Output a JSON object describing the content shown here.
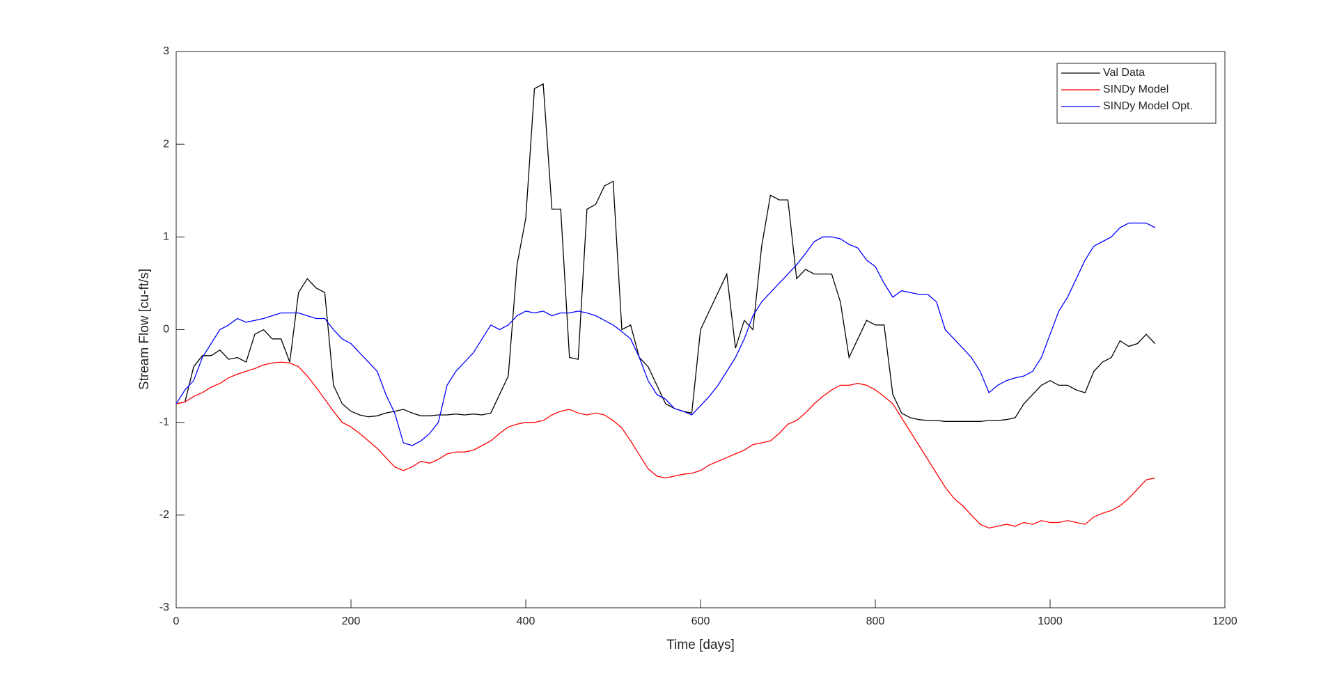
{
  "chart_data": {
    "type": "line",
    "xlabel": "Time [days]",
    "ylabel": "Stream Flow [cu-ft/s]",
    "xlim": [
      0,
      1200
    ],
    "ylim": [
      -3,
      3
    ],
    "xticks": [
      0,
      200,
      400,
      600,
      800,
      1000,
      1200
    ],
    "yticks": [
      -3,
      -2,
      -1,
      0,
      1,
      2,
      3
    ],
    "legend": "upper right",
    "x": [
      0,
      10,
      20,
      30,
      40,
      50,
      60,
      70,
      80,
      90,
      100,
      110,
      120,
      130,
      140,
      150,
      160,
      170,
      180,
      190,
      200,
      210,
      220,
      230,
      240,
      250,
      260,
      270,
      280,
      290,
      300,
      310,
      320,
      330,
      340,
      350,
      360,
      370,
      380,
      390,
      400,
      410,
      420,
      430,
      440,
      450,
      460,
      470,
      480,
      490,
      500,
      510,
      520,
      530,
      540,
      550,
      560,
      570,
      580,
      590,
      600,
      610,
      620,
      630,
      640,
      650,
      660,
      670,
      680,
      690,
      700,
      710,
      720,
      730,
      740,
      750,
      760,
      770,
      780,
      790,
      800,
      810,
      820,
      830,
      840,
      850,
      860,
      870,
      880,
      890,
      900,
      910,
      920,
      930,
      940,
      950,
      960,
      970,
      980,
      990,
      1000,
      1010,
      1020,
      1030,
      1040,
      1050,
      1060,
      1070,
      1080,
      1090,
      1100,
      1110,
      1120
    ],
    "series": [
      {
        "name": "Val Data",
        "color": "#000000",
        "values": [
          -0.8,
          -0.78,
          -0.4,
          -0.28,
          -0.28,
          -0.22,
          -0.32,
          -0.3,
          -0.35,
          -0.05,
          0,
          -0.1,
          -0.1,
          -0.35,
          0.4,
          0.55,
          0.45,
          0.4,
          -0.6,
          -0.8,
          -0.88,
          -0.92,
          -0.94,
          -0.93,
          -0.9,
          -0.88,
          -0.86,
          -0.9,
          -0.93,
          -0.93,
          -0.92,
          -0.92,
          -0.91,
          -0.92,
          -0.91,
          -0.92,
          -0.9,
          -0.7,
          -0.5,
          0.7,
          1.2,
          2.6,
          2.65,
          1.3,
          1.3,
          -0.3,
          -0.32,
          1.3,
          1.35,
          1.55,
          1.6,
          0,
          0.05,
          -0.3,
          -0.4,
          -0.6,
          -0.8,
          -0.85,
          -0.88,
          -0.9,
          0,
          0.2,
          0.4,
          0.6,
          -0.2,
          0.1,
          0,
          0.9,
          1.45,
          1.4,
          1.4,
          0.55,
          0.65,
          0.6,
          0.6,
          0.6,
          0.3,
          -0.3,
          -0.1,
          0.1,
          0.05,
          0.05,
          -0.7,
          -0.9,
          -0.95,
          -0.97,
          -0.98,
          -0.98,
          -0.99,
          -0.99,
          -0.99,
          -0.99,
          -0.99,
          -0.98,
          -0.98,
          -0.97,
          -0.95,
          -0.8,
          -0.7,
          -0.6,
          -0.55,
          -0.6,
          -0.6,
          -0.65,
          -0.68,
          -0.45,
          -0.35,
          -0.3,
          -0.12,
          -0.18,
          -0.15,
          -0.05,
          -0.15
        ]
      },
      {
        "name": "SINDy Model",
        "color": "#ff0000",
        "values": [
          -0.8,
          -0.78,
          -0.72,
          -0.68,
          -0.62,
          -0.58,
          -0.52,
          -0.48,
          -0.45,
          -0.42,
          -0.38,
          -0.36,
          -0.35,
          -0.36,
          -0.4,
          -0.5,
          -0.62,
          -0.75,
          -0.88,
          -1.0,
          -1.05,
          -1.12,
          -1.2,
          -1.28,
          -1.38,
          -1.48,
          -1.52,
          -1.48,
          -1.42,
          -1.44,
          -1.4,
          -1.34,
          -1.32,
          -1.32,
          -1.3,
          -1.25,
          -1.2,
          -1.12,
          -1.05,
          -1.02,
          -1.0,
          -1.0,
          -0.98,
          -0.92,
          -0.88,
          -0.86,
          -0.9,
          -0.92,
          -0.9,
          -0.92,
          -0.98,
          -1.06,
          -1.2,
          -1.35,
          -1.5,
          -1.58,
          -1.6,
          -1.58,
          -1.56,
          -1.55,
          -1.52,
          -1.46,
          -1.42,
          -1.38,
          -1.34,
          -1.3,
          -1.24,
          -1.22,
          -1.2,
          -1.12,
          -1.02,
          -0.98,
          -0.9,
          -0.8,
          -0.72,
          -0.65,
          -0.6,
          -0.6,
          -0.58,
          -0.6,
          -0.65,
          -0.72,
          -0.8,
          -0.95,
          -1.1,
          -1.25,
          -1.4,
          -1.55,
          -1.7,
          -1.82,
          -1.9,
          -2.0,
          -2.1,
          -2.14,
          -2.12,
          -2.1,
          -2.12,
          -2.08,
          -2.1,
          -2.06,
          -2.08,
          -2.08,
          -2.06,
          -2.08,
          -2.1,
          -2.02,
          -1.98,
          -1.95,
          -1.9,
          -1.82,
          -1.72,
          -1.62,
          -1.6
        ]
      },
      {
        "name": "SINDy Model Opt.",
        "color": "#0000ff",
        "values": [
          -0.8,
          -0.65,
          -0.55,
          -0.3,
          -0.15,
          0.0,
          0.05,
          0.12,
          0.08,
          0.1,
          0.12,
          0.15,
          0.18,
          0.18,
          0.18,
          0.15,
          0.12,
          0.12,
          0.0,
          -0.1,
          -0.15,
          -0.25,
          -0.35,
          -0.45,
          -0.7,
          -0.9,
          -1.22,
          -1.25,
          -1.2,
          -1.12,
          -1.0,
          -0.6,
          -0.45,
          -0.35,
          -0.25,
          -0.1,
          0.05,
          0.0,
          0.05,
          0.15,
          0.2,
          0.18,
          0.2,
          0.15,
          0.18,
          0.18,
          0.2,
          0.18,
          0.15,
          0.1,
          0.05,
          -0.02,
          -0.1,
          -0.3,
          -0.55,
          -0.7,
          -0.75,
          -0.85,
          -0.88,
          -0.92,
          -0.82,
          -0.72,
          -0.6,
          -0.45,
          -0.3,
          -0.1,
          0.15,
          0.3,
          0.4,
          0.5,
          0.6,
          0.7,
          0.82,
          0.95,
          1.0,
          1.0,
          0.98,
          0.92,
          0.88,
          0.75,
          0.68,
          0.5,
          0.35,
          0.42,
          0.4,
          0.38,
          0.38,
          0.3,
          0.0,
          -0.1,
          -0.2,
          -0.3,
          -0.45,
          -0.68,
          -0.6,
          -0.55,
          -0.52,
          -0.5,
          -0.45,
          -0.3,
          -0.05,
          0.2,
          0.35,
          0.55,
          0.75,
          0.9,
          0.95,
          1.0,
          1.1,
          1.15,
          1.15,
          1.15,
          1.1
        ]
      }
    ]
  }
}
